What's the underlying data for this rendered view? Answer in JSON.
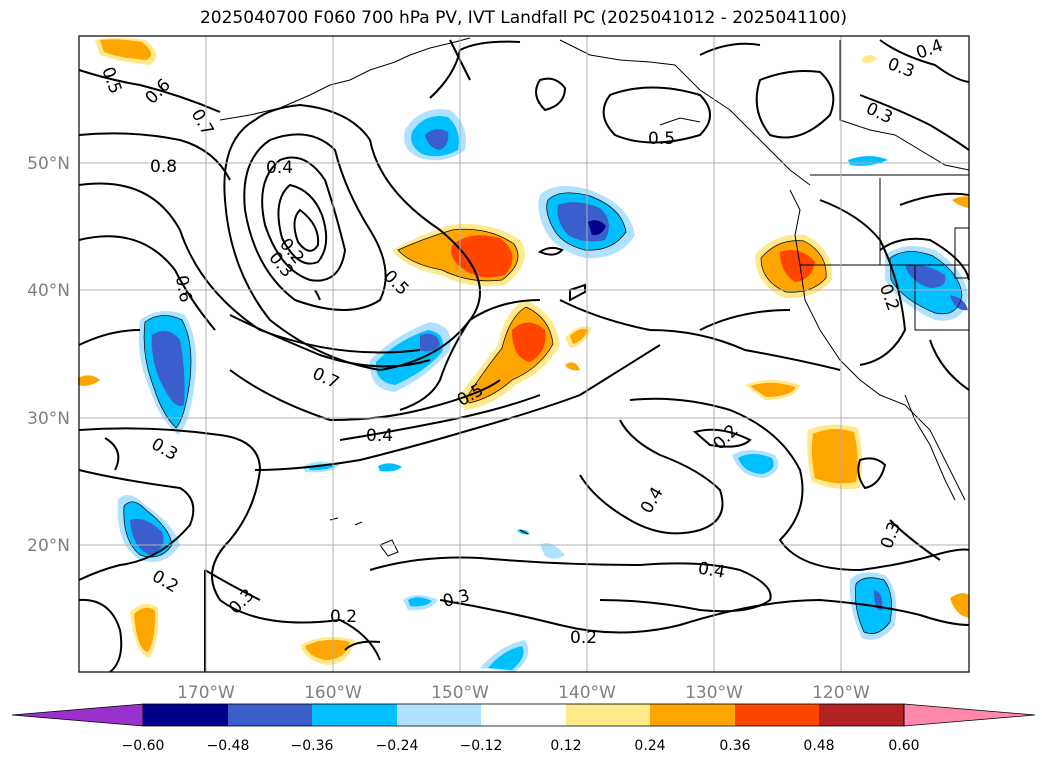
{
  "title": "2025040700 F060 700 hPa PV, IVT Landfall PC (2025041012 - 2025041100)",
  "lon_ticks": [
    "170°W",
    "160°W",
    "150°W",
    "140°W",
    "130°W",
    "120°W"
  ],
  "lat_ticks": [
    "50°N",
    "40°N",
    "30°N",
    "20°N"
  ],
  "colorbar": {
    "colors": [
      "#9932cc",
      "#00008b",
      "#3a5fcd",
      "#00bfff",
      "#b0e2ff",
      "#ffffff",
      "#ffe98a",
      "#ffa500",
      "#ff4500",
      "#b22222",
      "#ff88aa"
    ],
    "tick_labels": [
      "−0.60",
      "−0.48",
      "−0.36",
      "−0.24",
      "−0.12",
      "0.12",
      "0.24",
      "0.36",
      "0.48",
      "0.60"
    ]
  },
  "contour_labels": [
    "0.5",
    "0.6",
    "0.7",
    "0.8",
    "0.4",
    "0.2",
    "0.3",
    "0.6",
    "0.5",
    "0.7",
    "0.5",
    "0.4",
    "0.3",
    "0.5",
    "0.3",
    "0.4",
    "0.3",
    "0.2",
    "0.2",
    "0.4",
    "0.3",
    "0.4",
    "0.2",
    "0.3",
    "0.2",
    "0.3",
    "0.2"
  ]
}
